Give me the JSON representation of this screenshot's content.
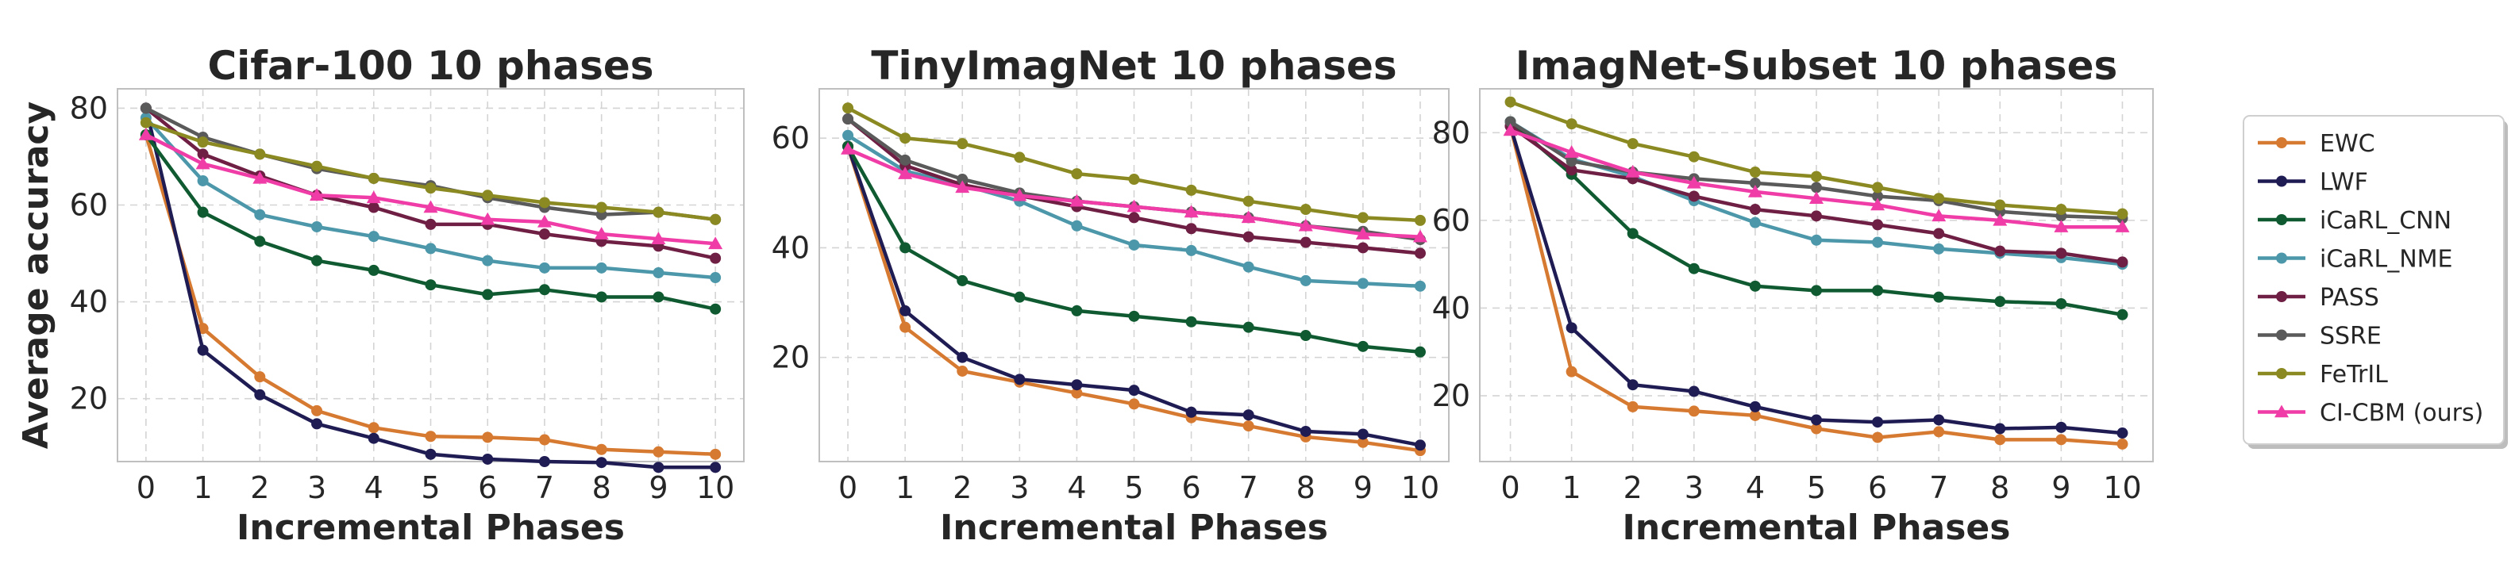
{
  "chart_data": [
    {
      "type": "line",
      "title": "Cifar-100 10 phases",
      "xlabel": "Incremental Phases",
      "ylabel": "Average accuracy",
      "x": [
        0,
        1,
        2,
        3,
        4,
        5,
        6,
        7,
        8,
        9,
        10
      ],
      "xlim": [
        -0.5,
        10.5
      ],
      "ylim": [
        7,
        84
      ],
      "yticks": [
        20,
        40,
        60,
        80
      ],
      "grid": true,
      "series": [
        {
          "name": "EWC",
          "values": [
            74.5,
            34.5,
            24.5,
            17.5,
            14.0,
            12.2,
            12.0,
            11.5,
            9.5,
            9.0,
            8.5
          ]
        },
        {
          "name": "LWF",
          "values": [
            80.0,
            30.0,
            20.8,
            14.8,
            11.8,
            8.5,
            7.5,
            7.0,
            6.8,
            5.8,
            5.8
          ]
        },
        {
          "name": "iCaRL_CNN",
          "values": [
            74.5,
            58.5,
            52.5,
            48.5,
            46.5,
            43.5,
            41.5,
            42.5,
            41.0,
            41.0,
            38.5
          ]
        },
        {
          "name": "iCaRL_NME",
          "values": [
            78.0,
            65.0,
            58.0,
            55.5,
            53.5,
            51.0,
            48.5,
            47.0,
            47.0,
            46.0,
            45.0
          ]
        },
        {
          "name": "PASS",
          "values": [
            80.0,
            70.5,
            66.0,
            62.0,
            59.5,
            56.0,
            56.0,
            54.0,
            52.5,
            51.5,
            49.0
          ]
        },
        {
          "name": "SSRE",
          "values": [
            80.0,
            74.0,
            70.5,
            67.5,
            65.5,
            64.0,
            61.5,
            59.5,
            58.0,
            58.5,
            57.0
          ]
        },
        {
          "name": "FeTrIL",
          "values": [
            77.0,
            73.0,
            70.5,
            68.0,
            65.5,
            63.5,
            62.0,
            60.5,
            59.5,
            58.5,
            57.0
          ]
        },
        {
          "name": "CI-CBM (ours)",
          "values": [
            74.5,
            68.5,
            65.5,
            62.0,
            61.5,
            59.5,
            57.0,
            56.5,
            54.0,
            53.0,
            52.0
          ]
        }
      ]
    },
    {
      "type": "line",
      "title": "TinyImagNet 10 phases",
      "xlabel": "Incremental Phases",
      "ylabel": "",
      "x": [
        0,
        1,
        2,
        3,
        4,
        5,
        6,
        7,
        8,
        9,
        10
      ],
      "xlim": [
        -0.5,
        10.5
      ],
      "ylim": [
        1,
        69
      ],
      "yticks": [
        20,
        40,
        60
      ],
      "grid": true,
      "series": [
        {
          "name": "EWC",
          "values": [
            58.5,
            25.5,
            17.5,
            15.5,
            13.5,
            11.5,
            9.0,
            7.5,
            5.5,
            4.5,
            3.0
          ]
        },
        {
          "name": "LWF",
          "values": [
            58.5,
            28.5,
            20.0,
            16.0,
            15.0,
            14.0,
            10.0,
            9.5,
            6.5,
            6.0,
            4.0
          ]
        },
        {
          "name": "iCaRL_CNN",
          "values": [
            58.5,
            40.0,
            34.0,
            31.0,
            28.5,
            27.5,
            26.5,
            25.5,
            24.0,
            22.0,
            21.0
          ]
        },
        {
          "name": "iCaRL_NME",
          "values": [
            60.5,
            54.0,
            51.5,
            48.5,
            44.0,
            40.5,
            39.5,
            36.5,
            34.0,
            33.5,
            33.0
          ]
        },
        {
          "name": "PASS",
          "values": [
            63.5,
            55.0,
            51.5,
            49.5,
            47.5,
            45.5,
            43.5,
            42.0,
            41.0,
            40.0,
            39.0
          ]
        },
        {
          "name": "SSRE",
          "values": [
            63.5,
            56.0,
            52.5,
            50.0,
            48.5,
            47.5,
            46.5,
            45.5,
            44.0,
            43.0,
            41.5
          ]
        },
        {
          "name": "FeTrIL",
          "values": [
            65.5,
            60.0,
            59.0,
            56.5,
            53.5,
            52.5,
            50.5,
            48.5,
            47.0,
            45.5,
            45.0
          ]
        },
        {
          "name": "CI-CBM (ours)",
          "values": [
            58.0,
            53.5,
            51.0,
            49.5,
            48.5,
            47.5,
            46.5,
            45.5,
            44.0,
            42.5,
            42.0
          ]
        }
      ]
    },
    {
      "type": "line",
      "title": "ImagNet-Subset 10 phases",
      "xlabel": "Incremental Phases",
      "ylabel": "",
      "x": [
        0,
        1,
        2,
        3,
        4,
        5,
        6,
        7,
        8,
        9,
        10
      ],
      "xlim": [
        -0.5,
        10.5
      ],
      "ylim": [
        5,
        90
      ],
      "yticks": [
        20,
        40,
        60,
        80
      ],
      "grid": true,
      "series": [
        {
          "name": "EWC",
          "values": [
            81.5,
            25.5,
            17.5,
            16.5,
            15.5,
            12.5,
            10.5,
            11.8,
            10.0,
            10.0,
            9.0
          ]
        },
        {
          "name": "LWF",
          "values": [
            81.5,
            35.5,
            22.5,
            21.0,
            17.5,
            14.5,
            14.0,
            14.5,
            12.5,
            12.8,
            11.5
          ]
        },
        {
          "name": "iCaRL_CNN",
          "values": [
            82.5,
            70.5,
            57.0,
            49.0,
            45.0,
            44.0,
            44.0,
            42.5,
            41.5,
            41.0,
            38.5
          ]
        },
        {
          "name": "iCaRL_NME",
          "values": [
            82.5,
            74.0,
            70.0,
            64.5,
            59.5,
            55.5,
            55.0,
            53.5,
            52.5,
            51.5,
            50.0
          ]
        },
        {
          "name": "PASS",
          "values": [
            81.5,
            71.5,
            69.5,
            65.5,
            62.5,
            61.0,
            59.0,
            57.0,
            53.0,
            52.5,
            50.5
          ]
        },
        {
          "name": "SSRE",
          "values": [
            82.5,
            73.5,
            71.0,
            69.5,
            68.5,
            67.5,
            65.5,
            64.5,
            62.0,
            61.0,
            60.5
          ]
        },
        {
          "name": "FeTrIL",
          "values": [
            87.0,
            82.0,
            77.5,
            74.5,
            71.0,
            70.0,
            67.5,
            65.0,
            63.5,
            62.5,
            61.5
          ]
        },
        {
          "name": "CI-CBM (ours)",
          "values": [
            80.5,
            75.5,
            71.0,
            68.5,
            66.5,
            65.0,
            63.5,
            61.0,
            60.0,
            58.5,
            58.5
          ]
        }
      ]
    }
  ],
  "legend": {
    "placement": "right",
    "entries": [
      "EWC",
      "LWF",
      "iCaRL_CNN",
      "iCaRL_NME",
      "PASS",
      "SSRE",
      "FeTrIL",
      "CI-CBM (ours)"
    ]
  },
  "colors": {
    "EWC": "#d77a31",
    "LWF": "#1f1c54",
    "iCaRL_CNN": "#0f5a30",
    "iCaRL_NME": "#4c97a9",
    "PASS": "#6e1f43",
    "SSRE": "#5a5a5a",
    "FeTrIL": "#8b8a22",
    "CI-CBM (ours)": "#ef3ca6"
  },
  "markers": {
    "EWC": "circle",
    "LWF": "circle",
    "iCaRL_CNN": "circle",
    "iCaRL_NME": "circle",
    "PASS": "circle",
    "SSRE": "circle",
    "FeTrIL": "circle",
    "CI-CBM (ours)": "triangle"
  }
}
